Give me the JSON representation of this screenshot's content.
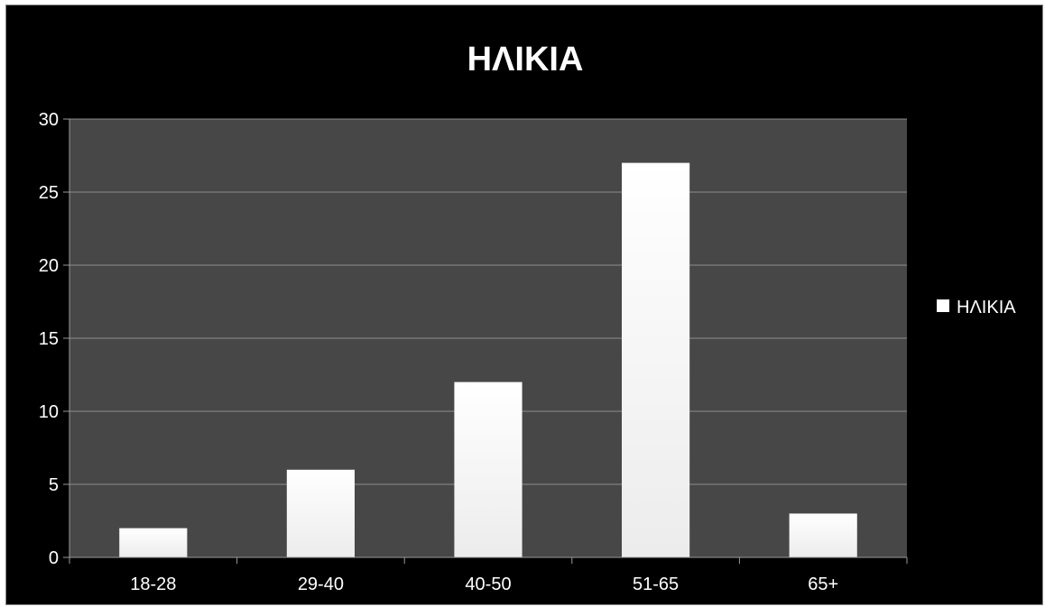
{
  "chart_data": {
    "type": "bar",
    "title": "ΗΛΙΚΙΑ",
    "xlabel": "",
    "ylabel": "",
    "categories": [
      "18-28",
      "29-40",
      "40-50",
      "51-65",
      "65+"
    ],
    "series": [
      {
        "name": "ΗΛΙΚΙΑ",
        "values": [
          2,
          6,
          12,
          27,
          3
        ]
      }
    ],
    "ylim": [
      0,
      30
    ],
    "yticks": [
      0,
      5,
      10,
      15,
      20,
      25,
      30
    ],
    "grid": true,
    "legend_position": "right",
    "colors": {
      "background": "#000000",
      "plot_area": "#474747",
      "bar": "#ffffff",
      "grid": "#8c8c8c",
      "text": "#ffffff"
    }
  }
}
